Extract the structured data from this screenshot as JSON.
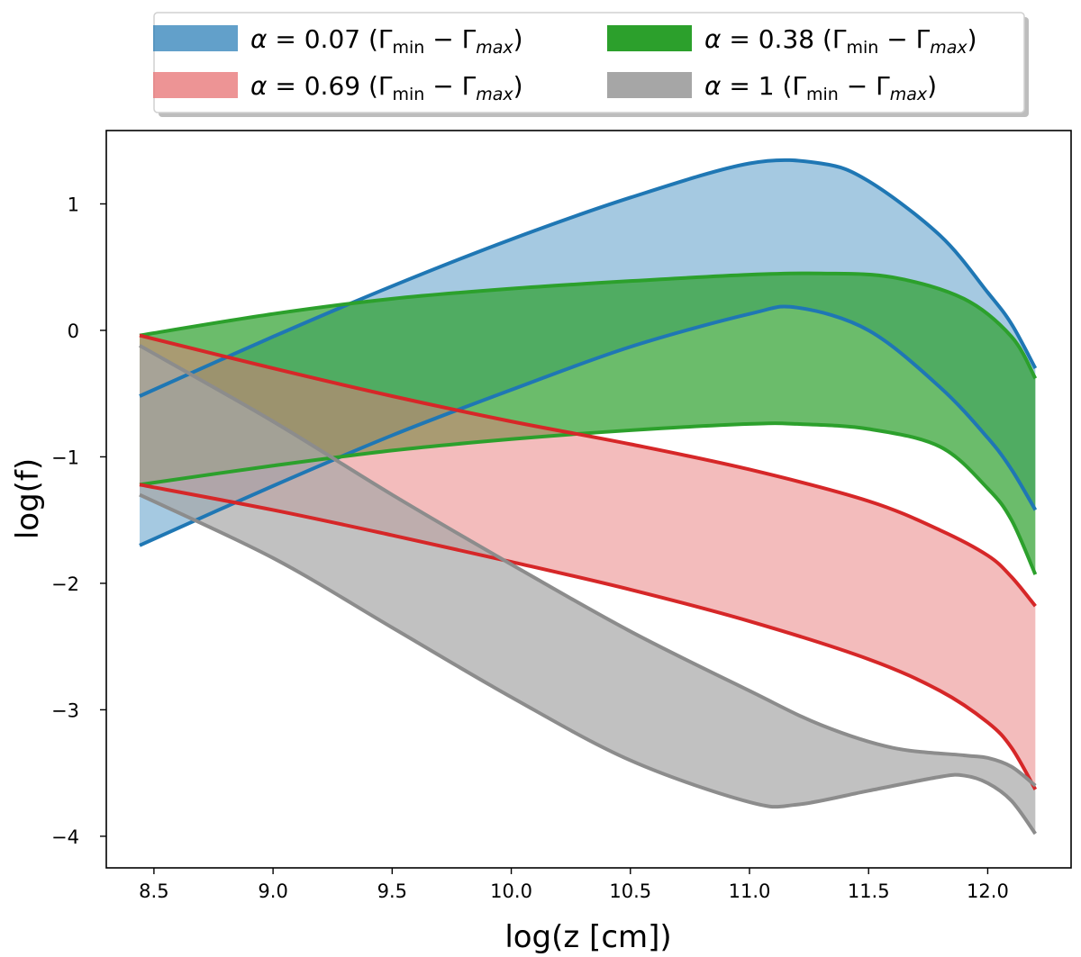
{
  "chart_data": {
    "type": "area",
    "title": "",
    "xlabel": "log(z [cm])",
    "ylabel": "log(f)",
    "xlim": [
      8.3,
      12.35
    ],
    "ylim": [
      -4.25,
      1.58
    ],
    "xticks": [
      8.5,
      9.0,
      9.5,
      10.0,
      10.5,
      11.0,
      11.5,
      12.0
    ],
    "xtick_labels": [
      "8.5",
      "9.0",
      "9.5",
      "10.0",
      "10.5",
      "11.0",
      "11.5",
      "12.0"
    ],
    "yticks": [
      1,
      0,
      -1,
      -2,
      -3,
      -4
    ],
    "ytick_labels": [
      "1",
      "0",
      "−1",
      "−2",
      "−3",
      "−4"
    ],
    "grid": false,
    "legend_placement": "top-center-above",
    "series": [
      {
        "name": "α = 0.07 (Γmin − Γmax)",
        "legend_alpha": "0.07",
        "line_color": "#1f77b4",
        "fill_color": "#1f77b4",
        "fill_opacity": 0.4,
        "upper": {
          "x": [
            8.44,
            9.0,
            9.5,
            10.0,
            10.5,
            11.0,
            11.3,
            11.5,
            11.8,
            12.0,
            12.1,
            12.2
          ],
          "y": [
            -0.52,
            -0.05,
            0.35,
            0.72,
            1.05,
            1.32,
            1.32,
            1.18,
            0.75,
            0.3,
            0.05,
            -0.3
          ]
        },
        "lower": {
          "x": [
            8.44,
            9.0,
            9.5,
            10.0,
            10.5,
            11.0,
            11.2,
            11.5,
            11.8,
            12.0,
            12.1,
            12.2
          ],
          "y": [
            -1.7,
            -1.23,
            -0.83,
            -0.47,
            -0.13,
            0.13,
            0.18,
            0.0,
            -0.45,
            -0.85,
            -1.1,
            -1.42
          ]
        }
      },
      {
        "name": "α = 0.38 (Γmin − Γmax)",
        "legend_alpha": "0.38",
        "line_color": "#2ca02c",
        "fill_color": "#2ca02c",
        "fill_opacity": 0.7,
        "upper": {
          "x": [
            8.44,
            9.0,
            9.5,
            10.0,
            10.5,
            11.0,
            11.3,
            11.6,
            11.9,
            12.1,
            12.2
          ],
          "y": [
            -0.04,
            0.13,
            0.25,
            0.33,
            0.39,
            0.44,
            0.45,
            0.42,
            0.25,
            -0.05,
            -0.38
          ]
        },
        "lower": {
          "x": [
            8.44,
            9.0,
            9.5,
            10.0,
            10.5,
            11.0,
            11.2,
            11.5,
            11.8,
            12.0,
            12.1,
            12.2
          ],
          "y": [
            -1.22,
            -1.07,
            -0.95,
            -0.86,
            -0.79,
            -0.74,
            -0.74,
            -0.78,
            -0.92,
            -1.25,
            -1.5,
            -1.93
          ]
        }
      },
      {
        "name": "α = 0.69 (Γmin − Γmax)",
        "legend_alpha": "0.69",
        "line_color": "#d62728",
        "fill_color": "#e8797a",
        "fill_opacity": 0.5,
        "upper": {
          "x": [
            8.44,
            9.0,
            9.5,
            10.0,
            10.5,
            11.0,
            11.5,
            11.8,
            12.0,
            12.1,
            12.2
          ],
          "y": [
            -0.04,
            -0.3,
            -0.52,
            -0.72,
            -0.9,
            -1.1,
            -1.35,
            -1.58,
            -1.78,
            -1.95,
            -2.18
          ]
        },
        "lower": {
          "x": [
            8.44,
            9.0,
            9.5,
            10.0,
            10.5,
            11.0,
            11.5,
            11.8,
            12.0,
            12.1,
            12.2
          ],
          "y": [
            -1.22,
            -1.42,
            -1.62,
            -1.83,
            -2.05,
            -2.3,
            -2.6,
            -2.85,
            -3.1,
            -3.3,
            -3.63
          ]
        }
      },
      {
        "name": "α = 1 (Γmin − Γmax)",
        "legend_alpha": "1",
        "line_color": "#8c8c8c",
        "fill_color": "#a6a6a6",
        "fill_opacity": 0.7,
        "upper": {
          "x": [
            8.44,
            9.0,
            9.5,
            10.0,
            10.5,
            11.0,
            11.3,
            11.6,
            11.9,
            12.0,
            12.1,
            12.2
          ],
          "y": [
            -0.12,
            -0.72,
            -1.3,
            -1.85,
            -2.38,
            -2.85,
            -3.12,
            -3.3,
            -3.36,
            -3.38,
            -3.45,
            -3.6
          ]
        },
        "lower": {
          "x": [
            8.44,
            9.0,
            9.5,
            10.0,
            10.5,
            11.0,
            11.2,
            11.5,
            11.8,
            11.9,
            12.0,
            12.1,
            12.2
          ],
          "y": [
            -1.3,
            -1.8,
            -2.35,
            -2.9,
            -3.4,
            -3.73,
            -3.75,
            -3.64,
            -3.53,
            -3.52,
            -3.58,
            -3.72,
            -3.98
          ]
        }
      }
    ]
  }
}
